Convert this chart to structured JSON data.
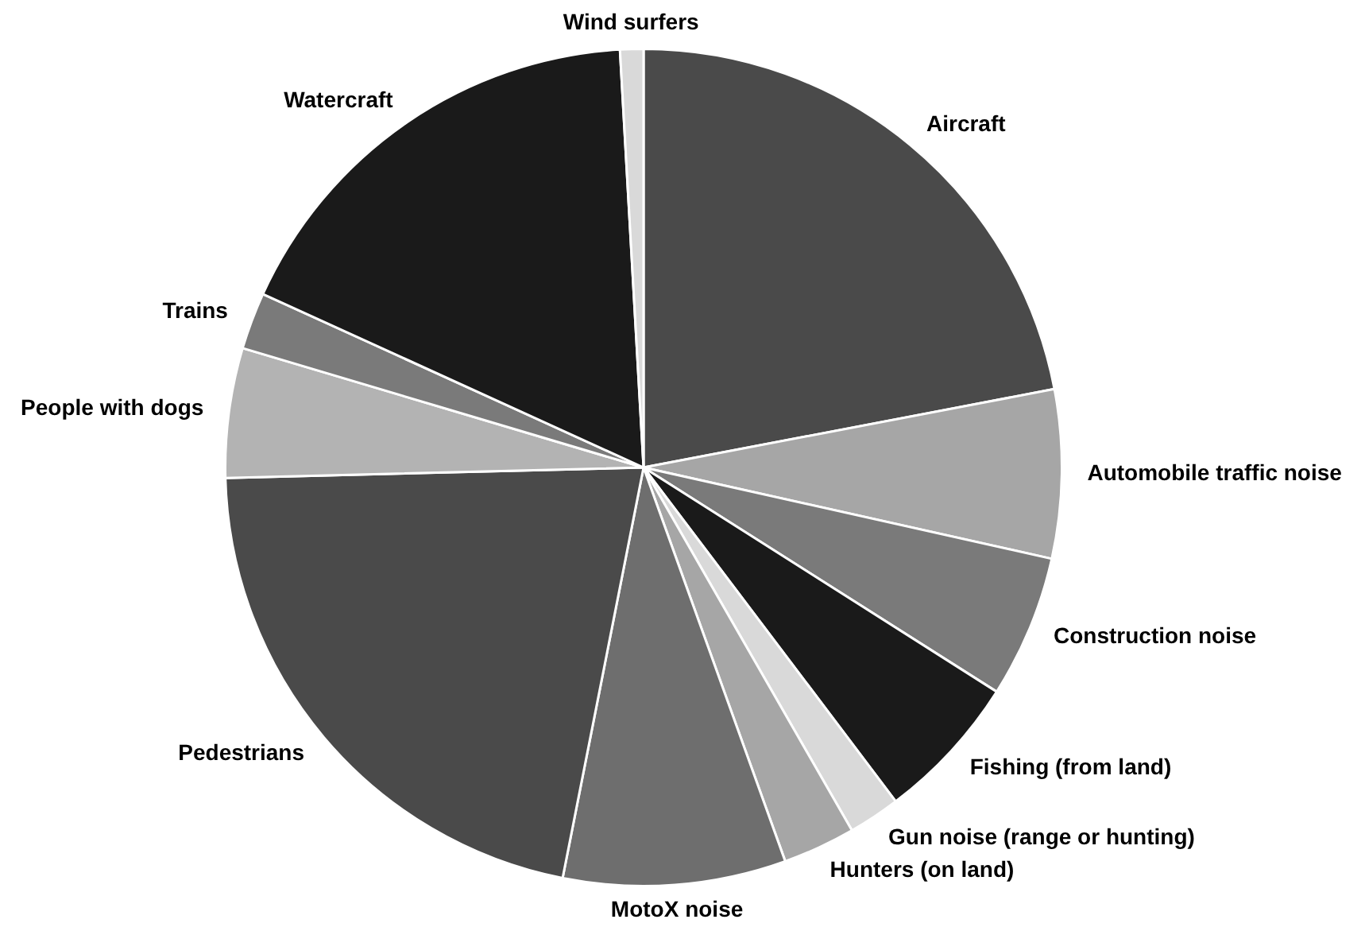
{
  "chart_data": {
    "type": "pie",
    "categories": [
      "Aircraft",
      "Automobile traffic noise",
      "Construction noise",
      "Fishing (from land)",
      "Gun noise (range or hunting)",
      "Hunters (on land)",
      "MotoX noise",
      "Pedestrians",
      "People with dogs",
      "Trains",
      "Watercraft",
      "Wind surfers"
    ],
    "values": [
      22,
      6.5,
      5.5,
      5.7,
      2,
      2.8,
      8.6,
      21.5,
      5,
      2.2,
      17.3,
      0.9
    ],
    "colors": [
      "#4a4a4a",
      "#a6a6a6",
      "#7a7a7a",
      "#1a1a1a",
      "#d9d9d9",
      "#a6a6a6",
      "#6e6e6e",
      "#4a4a4a",
      "#b3b3b3",
      "#7a7a7a",
      "#1a1a1a",
      "#d9d9d9"
    ],
    "legend": false
  }
}
